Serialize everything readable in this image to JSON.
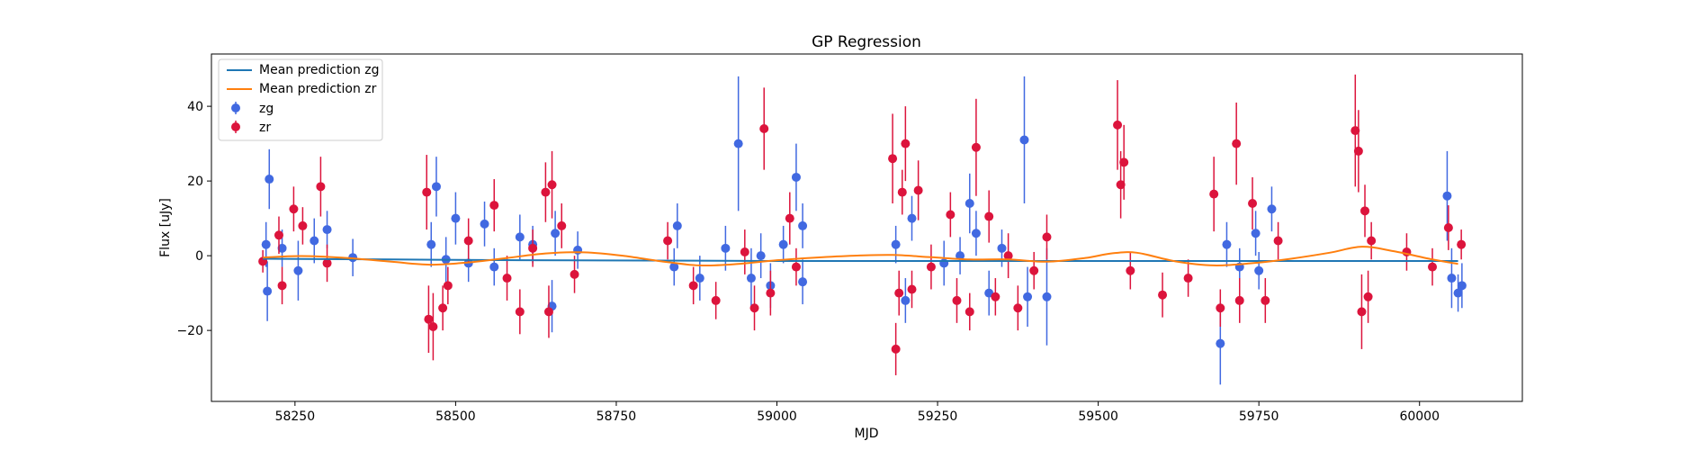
{
  "chart_data": {
    "type": "scatter",
    "title": "GP Regression",
    "xlabel": "MJD",
    "ylabel": "Flux [uJy]",
    "xlim": [
      58120,
      60160
    ],
    "ylim": [
      -39,
      54
    ],
    "xticks": [
      58250,
      58500,
      58750,
      59000,
      59250,
      59500,
      59750,
      60000
    ],
    "xtick_labels": [
      "58250",
      "58500",
      "58750",
      "59000",
      "59250",
      "59500",
      "59750",
      "60000"
    ],
    "yticks": [
      -20,
      0,
      20,
      40
    ],
    "ytick_labels": [
      "−20",
      "0",
      "20",
      "40"
    ],
    "grid": false,
    "legend_location": "upper-left",
    "series": [
      {
        "name": "Mean prediction zg",
        "kind": "line",
        "color": "#1f77b4",
        "x": [
          58200,
          58400,
          58600,
          58800,
          59000,
          59200,
          59400,
          59600,
          59800,
          60000,
          60060
        ],
        "y": [
          -0.8,
          -1.0,
          -1.2,
          -1.3,
          -1.4,
          -1.4,
          -1.4,
          -1.4,
          -1.4,
          -1.4,
          -1.4
        ]
      },
      {
        "name": "Mean prediction zr",
        "kind": "line",
        "color": "#ff7f0e",
        "x": [
          58200,
          58260,
          58330,
          58400,
          58460,
          58520,
          58580,
          58640,
          58700,
          58760,
          58820,
          58880,
          58940,
          59000,
          59060,
          59120,
          59180,
          59240,
          59300,
          59360,
          59420,
          59480,
          59520,
          59560,
          59620,
          59680,
          59740,
          59800,
          59860,
          59910,
          59960,
          60020,
          60060
        ],
        "y": [
          -0.5,
          -0.1,
          -0.6,
          -1.6,
          -2.4,
          -1.8,
          -0.6,
          0.6,
          0.9,
          0.0,
          -1.5,
          -2.6,
          -2.2,
          -1.2,
          -0.5,
          0.0,
          0.2,
          -0.4,
          -1.0,
          -1.0,
          -1.6,
          -0.6,
          0.6,
          0.8,
          -1.5,
          -2.6,
          -2.0,
          -0.8,
          0.8,
          2.4,
          1.2,
          -1.0,
          -2.2
        ]
      },
      {
        "name": "zg",
        "kind": "errorbar",
        "color": "#4169e1",
        "points": [
          [
            58205,
            3,
            6
          ],
          [
            58210,
            20.5,
            8
          ],
          [
            58207,
            -9.5,
            8
          ],
          [
            58230,
            2,
            5
          ],
          [
            58255,
            -4,
            8
          ],
          [
            58280,
            4,
            6
          ],
          [
            58300,
            7,
            5
          ],
          [
            58340,
            -0.5,
            5
          ],
          [
            58462,
            3,
            6
          ],
          [
            58470,
            18.5,
            8
          ],
          [
            58485,
            -1,
            6
          ],
          [
            58500,
            10,
            7
          ],
          [
            58520,
            -2,
            5
          ],
          [
            58545,
            8.5,
            6
          ],
          [
            58560,
            -3,
            5
          ],
          [
            58600,
            5,
            6
          ],
          [
            58620,
            3,
            5
          ],
          [
            58650,
            -13.5,
            7
          ],
          [
            58655,
            6,
            6
          ],
          [
            58690,
            1.5,
            5
          ],
          [
            58840,
            -3,
            5
          ],
          [
            58845,
            8,
            6
          ],
          [
            58880,
            -6,
            6
          ],
          [
            58920,
            2,
            6
          ],
          [
            58940,
            30,
            18
          ],
          [
            58960,
            -6,
            8
          ],
          [
            58975,
            0,
            6
          ],
          [
            58990,
            -8,
            6
          ],
          [
            59010,
            3,
            5
          ],
          [
            59030,
            21,
            9
          ],
          [
            59040,
            8,
            6
          ],
          [
            59040,
            -7,
            6
          ],
          [
            59185,
            3,
            5
          ],
          [
            59200,
            -12,
            6
          ],
          [
            59210,
            10,
            6
          ],
          [
            59260,
            -2,
            6
          ],
          [
            59285,
            0,
            5
          ],
          [
            59300,
            14,
            8
          ],
          [
            59310,
            6,
            6
          ],
          [
            59330,
            -10,
            6
          ],
          [
            59350,
            2,
            5
          ],
          [
            59385,
            31,
            17
          ],
          [
            59390,
            -11,
            8
          ],
          [
            59420,
            -11,
            13
          ],
          [
            59690,
            -23.5,
            11
          ],
          [
            59700,
            3,
            6
          ],
          [
            59720,
            -3,
            5
          ],
          [
            59745,
            6,
            6
          ],
          [
            59770,
            12.5,
            6
          ],
          [
            59750,
            -4,
            5
          ],
          [
            60043,
            16,
            12
          ],
          [
            60050,
            -6,
            8
          ],
          [
            60060,
            -10,
            5
          ],
          [
            60066,
            -8,
            6
          ]
        ]
      },
      {
        "name": "zr",
        "kind": "errorbar",
        "color": "#dc143c",
        "points": [
          [
            58200,
            -1.5,
            3
          ],
          [
            58225,
            5.5,
            5
          ],
          [
            58230,
            -8,
            5
          ],
          [
            58248,
            12.5,
            6
          ],
          [
            58262,
            8,
            5
          ],
          [
            58290,
            18.5,
            8
          ],
          [
            58300,
            -2,
            5
          ],
          [
            58455,
            17,
            10
          ],
          [
            58458,
            -17,
            9
          ],
          [
            58465,
            -19,
            9
          ],
          [
            58480,
            -14,
            6
          ],
          [
            58488,
            -8,
            5
          ],
          [
            58520,
            4,
            6
          ],
          [
            58560,
            13.5,
            7
          ],
          [
            58580,
            -6,
            6
          ],
          [
            58600,
            -15,
            6
          ],
          [
            58620,
            2,
            5
          ],
          [
            58640,
            17,
            8
          ],
          [
            58650,
            19,
            9
          ],
          [
            58645,
            -15,
            7
          ],
          [
            58665,
            8,
            6
          ],
          [
            58685,
            -5,
            5
          ],
          [
            58830,
            4,
            5
          ],
          [
            58870,
            -8,
            5
          ],
          [
            58905,
            -12,
            5
          ],
          [
            58950,
            1,
            6
          ],
          [
            58965,
            -14,
            6
          ],
          [
            58980,
            34,
            11
          ],
          [
            58990,
            -10,
            6
          ],
          [
            59020,
            10,
            7
          ],
          [
            59030,
            -3,
            5
          ],
          [
            59180,
            26,
            12
          ],
          [
            59185,
            -25,
            7
          ],
          [
            59190,
            -10,
            6
          ],
          [
            59195,
            17,
            6
          ],
          [
            59200,
            30,
            10
          ],
          [
            59210,
            -9,
            5
          ],
          [
            59220,
            17.5,
            8
          ],
          [
            59240,
            -3,
            6
          ],
          [
            59270,
            11,
            6
          ],
          [
            59280,
            -12,
            6
          ],
          [
            59300,
            -15,
            5
          ],
          [
            59310,
            29,
            13
          ],
          [
            59330,
            10.5,
            7
          ],
          [
            59340,
            -11,
            5
          ],
          [
            59360,
            0,
            6
          ],
          [
            59375,
            -14,
            6
          ],
          [
            59400,
            -4,
            5
          ],
          [
            59420,
            5,
            6
          ],
          [
            59530,
            35,
            12
          ],
          [
            59535,
            19,
            9
          ],
          [
            59540,
            25,
            10
          ],
          [
            59550,
            -4,
            5
          ],
          [
            59600,
            -10.5,
            6
          ],
          [
            59640,
            -6,
            5
          ],
          [
            59680,
            16.5,
            10
          ],
          [
            59690,
            -14,
            5
          ],
          [
            59715,
            30,
            11
          ],
          [
            59720,
            -12,
            6
          ],
          [
            59740,
            14,
            7
          ],
          [
            59760,
            -12,
            6
          ],
          [
            59780,
            4,
            5
          ],
          [
            59900,
            33.5,
            15
          ],
          [
            59905,
            28,
            11
          ],
          [
            59910,
            -15,
            10
          ],
          [
            59915,
            12,
            7
          ],
          [
            59920,
            -11,
            7
          ],
          [
            59925,
            4,
            5
          ],
          [
            59980,
            1,
            5
          ],
          [
            60020,
            -3,
            5
          ],
          [
            60045,
            7.5,
            6
          ],
          [
            60065,
            3,
            4
          ]
        ]
      }
    ]
  }
}
